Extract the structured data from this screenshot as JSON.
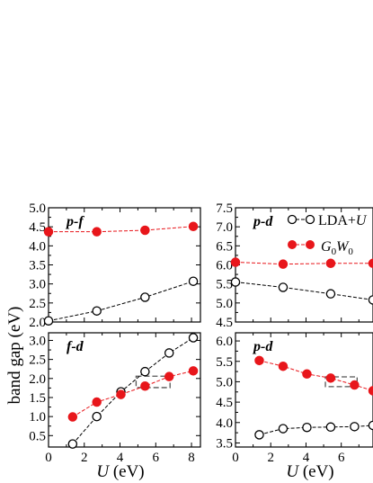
{
  "chart_data": [
    {
      "type": "line",
      "panel_label": "p-f",
      "xlim": [
        0,
        8.5
      ],
      "ylim": [
        2.0,
        5.0
      ],
      "yticks": [
        "2.0",
        "2.5",
        "3.0",
        "3.5",
        "4.0",
        "4.5",
        "5.0"
      ],
      "xticks": [],
      "series": [
        {
          "style": "lda_u",
          "x": [
            0,
            2.7,
            5.4,
            8.1
          ],
          "y": [
            2.03,
            2.29,
            2.65,
            3.07
          ]
        },
        {
          "style": "g0w0",
          "x": [
            0,
            2.7,
            5.4,
            8.1
          ],
          "y": [
            4.37,
            4.37,
            4.41,
            4.51
          ]
        }
      ]
    },
    {
      "type": "line",
      "panel_label": "p-d",
      "xlim": [
        0,
        7.8
      ],
      "ylim": [
        4.5,
        7.5
      ],
      "yticks": [
        "4.5",
        "5.0",
        "5.5",
        "6.0",
        "6.5",
        "7.0",
        "7.5"
      ],
      "xticks": [],
      "series": [
        {
          "style": "lda_u",
          "x": [
            0,
            2.7,
            5.4,
            7.8
          ],
          "y": [
            5.55,
            5.41,
            5.24,
            5.08
          ]
        },
        {
          "style": "g0w0",
          "x": [
            0,
            2.7,
            5.4,
            7.8
          ],
          "y": [
            6.07,
            6.02,
            6.04,
            6.04
          ]
        }
      ]
    },
    {
      "type": "line",
      "panel_label": "f-d",
      "xlim": [
        0,
        8.5
      ],
      "ylim": [
        0.2,
        3.2
      ],
      "yticks": [
        "0.5",
        "1.0",
        "1.5",
        "2.0",
        "2.5",
        "3.0"
      ],
      "xticks": [
        "0",
        "2",
        "4",
        "6",
        "8"
      ],
      "series": [
        {
          "style": "lda_u",
          "x": [
            1.35,
            2.7,
            4.05,
            5.4,
            6.75,
            8.1
          ],
          "y": [
            0.28,
            1.0,
            1.65,
            2.18,
            2.67,
            3.07
          ]
        },
        {
          "style": "g0w0",
          "x": [
            1.35,
            2.7,
            4.05,
            5.4,
            6.75,
            8.1
          ],
          "y": [
            0.99,
            1.38,
            1.58,
            1.8,
            2.05,
            2.2
          ]
        }
      ],
      "box": {
        "x": [
          4.9,
          6.8
        ],
        "y": [
          1.76,
          2.06
        ]
      }
    },
    {
      "type": "line",
      "panel_label": "p-d",
      "xlim": [
        0,
        7.8
      ],
      "ylim": [
        3.4,
        6.2
      ],
      "yticks": [
        "3.5",
        "4.0",
        "4.5",
        "5.0",
        "5.5",
        "6.0"
      ],
      "xticks": [
        "0",
        "2",
        "4",
        "6"
      ],
      "series": [
        {
          "style": "lda_u",
          "x": [
            1.35,
            2.7,
            4.05,
            5.4,
            6.75,
            7.8
          ],
          "y": [
            3.7,
            3.85,
            3.88,
            3.89,
            3.9,
            3.93
          ]
        },
        {
          "style": "g0w0",
          "x": [
            1.35,
            2.7,
            4.05,
            5.4,
            6.75,
            7.8
          ],
          "y": [
            5.52,
            5.38,
            5.19,
            5.09,
            4.92,
            4.78
          ]
        }
      ],
      "box": {
        "x": [
          5.1,
          6.9
        ],
        "y": [
          4.88,
          5.12
        ]
      }
    }
  ],
  "y_axis_label": "band gap  (eV)",
  "x_axis_label": "U (eV)",
  "legend": [
    {
      "label": "LDA+U",
      "style": "lda_u"
    },
    {
      "label": "G0W0",
      "style": "g0w0"
    }
  ],
  "colors": {
    "lda_u": "#000000",
    "g0w0": "#e8161b"
  }
}
